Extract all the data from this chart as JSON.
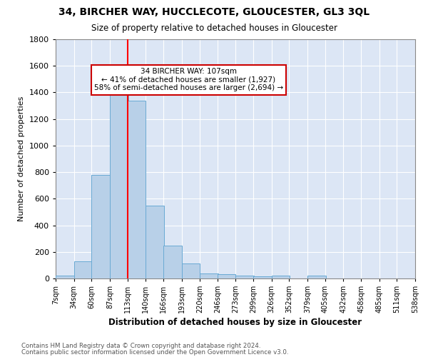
{
  "title": "34, BIRCHER WAY, HUCCLECOTE, GLOUCESTER, GL3 3QL",
  "subtitle": "Size of property relative to detached houses in Gloucester",
  "xlabel": "Distribution of detached houses by size in Gloucester",
  "ylabel": "Number of detached properties",
  "bar_color": "#b8d0e8",
  "bar_edge_color": "#6aaad4",
  "background_color": "#dce6f5",
  "grid_color": "#ffffff",
  "bin_labels": [
    "7sqm",
    "34sqm",
    "60sqm",
    "87sqm",
    "113sqm",
    "140sqm",
    "166sqm",
    "193sqm",
    "220sqm",
    "246sqm",
    "273sqm",
    "299sqm",
    "326sqm",
    "352sqm",
    "379sqm",
    "405sqm",
    "432sqm",
    "458sqm",
    "485sqm",
    "511sqm",
    "538sqm"
  ],
  "bin_edges": [
    7,
    34,
    60,
    87,
    113,
    140,
    166,
    193,
    220,
    246,
    273,
    299,
    326,
    352,
    379,
    405,
    432,
    458,
    485,
    511,
    538
  ],
  "bar_heights": [
    20,
    130,
    780,
    1450,
    1340,
    550,
    245,
    115,
    35,
    30,
    20,
    15,
    20,
    0,
    20,
    0,
    0,
    0,
    0,
    0
  ],
  "red_line_x": 113,
  "annotation_text": "34 BIRCHER WAY: 107sqm\n← 41% of detached houses are smaller (1,927)\n58% of semi-detached houses are larger (2,694) →",
  "annotation_box_color": "#ffffff",
  "annotation_box_edge": "#cc0000",
  "ylim": [
    0,
    1800
  ],
  "footnote1": "Contains HM Land Registry data © Crown copyright and database right 2024.",
  "footnote2": "Contains public sector information licensed under the Open Government Licence v3.0."
}
